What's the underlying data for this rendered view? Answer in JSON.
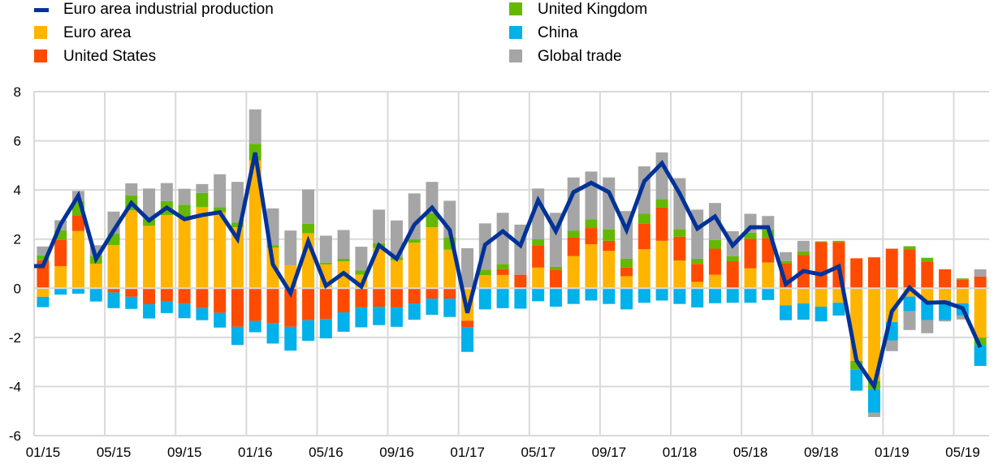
{
  "chart_data": {
    "type": "bar",
    "subtype": "stacked-bar-with-line",
    "title": "",
    "xlabel": "",
    "ylabel": "",
    "ylim": [
      -6,
      8
    ],
    "yticks": [
      -6,
      -4,
      -2,
      0,
      2,
      4,
      6,
      8
    ],
    "grid": true,
    "legend_position": "top",
    "x_tick_labels": [
      "01/15",
      "05/15",
      "09/15",
      "01/16",
      "05/16",
      "09/16",
      "01/17",
      "05/17",
      "09/17",
      "01/18",
      "05/18",
      "09/18",
      "01/19",
      "05/19"
    ],
    "categories": [
      "01/15",
      "02/15",
      "03/15",
      "04/15",
      "05/15",
      "06/15",
      "07/15",
      "08/15",
      "09/15",
      "10/15",
      "11/15",
      "12/15",
      "01/16",
      "02/16",
      "03/16",
      "04/16",
      "05/16",
      "06/16",
      "07/16",
      "08/16",
      "09/16",
      "10/16",
      "11/16",
      "12/16",
      "01/17",
      "02/17",
      "03/17",
      "04/17",
      "05/17",
      "06/17",
      "07/17",
      "08/17",
      "09/17",
      "10/17",
      "11/17",
      "12/17",
      "01/18",
      "02/18",
      "03/18",
      "04/18",
      "05/18",
      "06/18",
      "07/18",
      "08/18",
      "09/18",
      "10/18",
      "11/18",
      "12/18",
      "01/19",
      "02/19",
      "03/19",
      "04/19",
      "05/19",
      "06/19"
    ],
    "series": [
      {
        "name": "Euro area",
        "type": "bar",
        "color": "#FFB400",
        "values": [
          -0.35,
          0.9,
          2.33,
          1.0,
          1.76,
          3.17,
          2.54,
          2.98,
          2.85,
          3.3,
          3.1,
          2.48,
          5.2,
          1.66,
          0.93,
          2.24,
          0.97,
          1.09,
          0.55,
          1.64,
          1.14,
          1.85,
          2.48,
          1.57,
          -1.32,
          0.53,
          0.54,
          0,
          0.84,
          0,
          1.31,
          1.79,
          1.52,
          0.49,
          1.59,
          1.93,
          1.13,
          0.26,
          0.55,
          0,
          0.81,
          1.05,
          -0.7,
          -0.62,
          -0.75,
          -0.59,
          -2.96,
          -3.76,
          -1.38,
          -0.34,
          -0.53,
          -0.5,
          -0.61,
          -2.01
        ]
      },
      {
        "name": "United States",
        "type": "bar",
        "color": "#FF4B00",
        "values": [
          1.14,
          1.07,
          0.64,
          0,
          -0.17,
          -0.35,
          -0.65,
          -0.52,
          -0.64,
          -0.81,
          -1.0,
          -1.57,
          -1.33,
          -1.43,
          -1.57,
          -1.3,
          -1.25,
          -0.98,
          -0.78,
          -0.75,
          -0.78,
          -0.62,
          -0.42,
          -0.42,
          -0.28,
          0,
          0.24,
          0.55,
          0.9,
          0.75,
          0.76,
          0.66,
          0.41,
          0.35,
          1.03,
          1.35,
          0.97,
          0.73,
          1.06,
          1.1,
          1.2,
          1.0,
          1.0,
          1.36,
          1.88,
          1.88,
          1.22,
          1.26,
          1.61,
          1.58,
          1.08,
          0.77,
          0.35,
          0.48
        ]
      },
      {
        "name": "United Kingdom",
        "type": "bar",
        "color": "#65B800",
        "values": [
          0.2,
          0.39,
          0.58,
          0.31,
          0.46,
          0.61,
          0.27,
          0.57,
          0.55,
          0.58,
          0.2,
          0.2,
          0.68,
          0.09,
          0,
          0.38,
          0.07,
          0.11,
          0.17,
          0.19,
          0.12,
          0.14,
          0.57,
          0.5,
          0,
          0.22,
          0.2,
          0,
          0.25,
          0.12,
          0.28,
          0.36,
          0.47,
          0.36,
          0.41,
          0.35,
          0.3,
          0.21,
          0.35,
          0.2,
          0.25,
          0.32,
          0.11,
          0.14,
          0.03,
          0.05,
          -0.34,
          -0.35,
          0,
          0.13,
          0.16,
          0,
          0.05,
          -0.3
        ]
      },
      {
        "name": "China",
        "type": "bar",
        "color": "#00B1EA",
        "values": [
          -0.42,
          -0.26,
          -0.22,
          -0.54,
          -0.64,
          -0.49,
          -0.58,
          -0.49,
          -0.58,
          -0.49,
          -0.6,
          -0.74,
          -0.46,
          -0.82,
          -0.97,
          -0.84,
          -0.79,
          -0.79,
          -0.81,
          -0.75,
          -0.79,
          -0.66,
          -0.66,
          -0.75,
          -0.99,
          -0.86,
          -0.81,
          -0.83,
          -0.53,
          -0.75,
          -0.64,
          -0.5,
          -0.64,
          -0.86,
          -0.59,
          -0.5,
          -0.64,
          -0.78,
          -0.61,
          -0.59,
          -0.59,
          -0.48,
          -0.6,
          -0.66,
          -0.6,
          -0.52,
          -0.87,
          -0.95,
          -0.74,
          -0.59,
          -0.77,
          -0.8,
          -0.5,
          -0.85
        ]
      },
      {
        "name": "Global trade",
        "type": "bar",
        "color": "#A5A5A5",
        "values": [
          0.36,
          0.41,
          0.41,
          0.44,
          0.9,
          0.49,
          1.25,
          0.73,
          0.65,
          0.36,
          1.34,
          1.65,
          1.4,
          1.5,
          1.42,
          1.4,
          1.1,
          1.17,
          0.97,
          1.37,
          1.5,
          1.87,
          1.28,
          1.49,
          1.63,
          1.89,
          2.09,
          2.04,
          2.07,
          2.2,
          2.16,
          1.94,
          2.11,
          1.94,
          1.93,
          1.9,
          2.08,
          2.0,
          1.51,
          1.02,
          0.77,
          0.57,
          0.36,
          0.43,
          0,
          0,
          0,
          -0.18,
          -0.44,
          -0.77,
          -0.53,
          -0.05,
          -0.16,
          0.29
        ]
      },
      {
        "name": "Euro area industrial production",
        "type": "line",
        "color": "#003299",
        "start_value": 0.9,
        "values": [
          0.9,
          2.6,
          3.77,
          1.19,
          2.35,
          3.47,
          2.76,
          3.28,
          2.81,
          2.98,
          3.09,
          2.01,
          5.52,
          0.97,
          -0.2,
          1.91,
          0.1,
          0.62,
          0.07,
          1.75,
          1.2,
          2.59,
          3.28,
          2.37,
          -1.0,
          1.77,
          2.32,
          1.74,
          3.58,
          2.32,
          3.91,
          4.29,
          3.91,
          2.37,
          4.35,
          5.09,
          3.86,
          2.43,
          2.92,
          1.74,
          2.48,
          2.48,
          0.17,
          0.7,
          0.56,
          0.89,
          -2.94,
          -3.99,
          -0.94,
          0.02,
          -0.59,
          -0.57,
          -0.81,
          -2.4
        ]
      }
    ]
  },
  "legend": {
    "items": [
      {
        "label": "Euro area industrial production",
        "color": "#003299",
        "kind": "line"
      },
      {
        "label": "Euro area",
        "color": "#FFB400",
        "kind": "box"
      },
      {
        "label": "United States",
        "color": "#FF4B00",
        "kind": "box"
      },
      {
        "label": "United Kingdom",
        "color": "#65B800",
        "kind": "box"
      },
      {
        "label": "China",
        "color": "#00B1EA",
        "kind": "box"
      },
      {
        "label": "Global trade",
        "color": "#A5A5A5",
        "kind": "box"
      }
    ]
  }
}
